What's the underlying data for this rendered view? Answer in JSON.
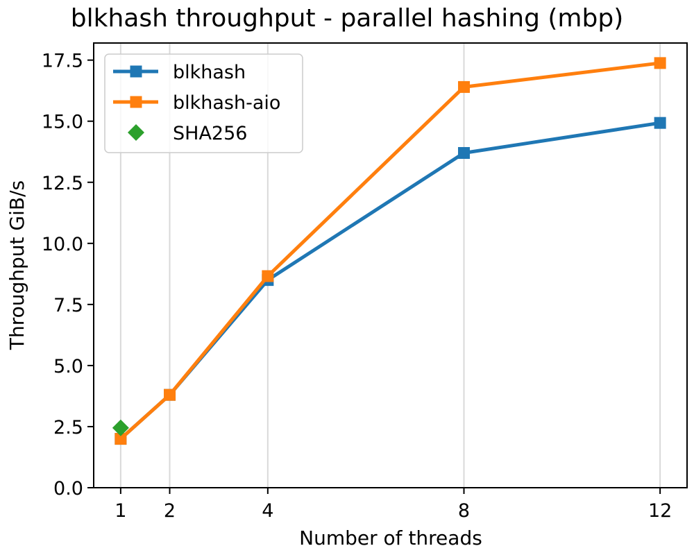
{
  "chart_data": {
    "type": "line",
    "title": "blkhash throughput - parallel hashing (mbp)",
    "xlabel": "Number of threads",
    "ylabel": "Throughput GiB/s",
    "x_ticks": [
      1,
      2,
      4,
      8,
      12
    ],
    "y_ticks": [
      "0.0",
      "2.5",
      "5.0",
      "7.5",
      "10.0",
      "12.5",
      "15.0",
      "17.5"
    ],
    "xlim": [
      0.45,
      12.55
    ],
    "ylim": [
      0,
      18.2
    ],
    "grid": "vertical",
    "legend_position": "top-left",
    "series": [
      {
        "name": "blkhash",
        "color": "#1f77b4",
        "marker": "square",
        "line": true,
        "x": [
          1,
          2,
          4,
          8,
          12
        ],
        "y": [
          2.0,
          3.8,
          8.5,
          13.7,
          14.93
        ]
      },
      {
        "name": "blkhash-aio",
        "color": "#ff7f0e",
        "marker": "square",
        "line": true,
        "x": [
          1,
          2,
          4,
          8,
          12
        ],
        "y": [
          2.0,
          3.8,
          8.66,
          16.4,
          17.38
        ]
      },
      {
        "name": "SHA256",
        "color": "#2ca02c",
        "marker": "diamond",
        "line": false,
        "x": [
          1
        ],
        "y": [
          2.45
        ]
      }
    ]
  }
}
